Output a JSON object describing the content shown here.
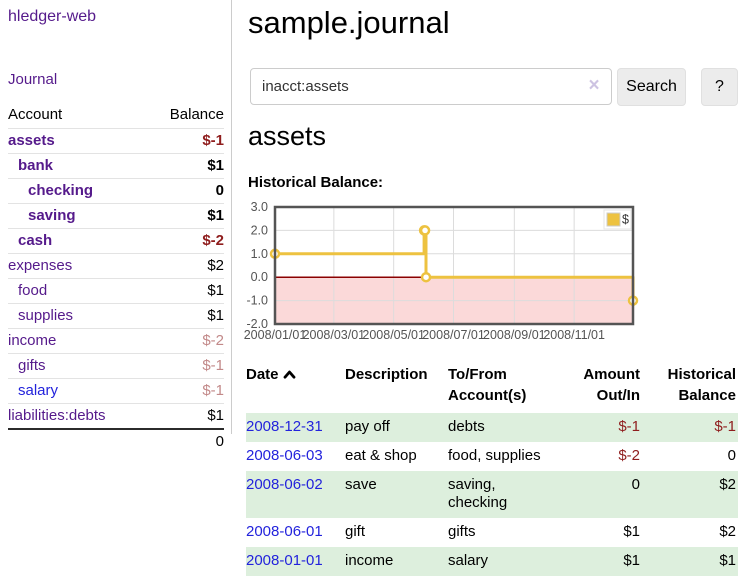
{
  "app": {
    "brand": "hledger-web"
  },
  "sidebar": {
    "journal_link": "Journal",
    "account_header": "Account",
    "balance_header": "Balance",
    "accounts": [
      {
        "name": "assets",
        "balance": "$-1",
        "indent": 0,
        "bold": true,
        "neg": "strong"
      },
      {
        "name": "bank",
        "balance": "$1",
        "indent": 1,
        "bold": true,
        "neg": "none"
      },
      {
        "name": "checking",
        "balance": "0",
        "indent": 2,
        "bold": true,
        "neg": "none"
      },
      {
        "name": "saving",
        "balance": "$1",
        "indent": 2,
        "bold": true,
        "neg": "none"
      },
      {
        "name": "cash",
        "balance": "$-2",
        "indent": 1,
        "bold": true,
        "neg": "strong"
      },
      {
        "name": "expenses",
        "balance": "$2",
        "indent": 0,
        "bold": false,
        "neg": "none"
      },
      {
        "name": "food",
        "balance": "$1",
        "indent": 1,
        "bold": false,
        "neg": "none"
      },
      {
        "name": "supplies",
        "balance": "$1",
        "indent": 1,
        "bold": false,
        "neg": "none"
      },
      {
        "name": "income",
        "balance": "$-2",
        "indent": 0,
        "bold": false,
        "neg": "soft"
      },
      {
        "name": "gifts",
        "balance": "$-1",
        "indent": 1,
        "bold": false,
        "neg": "soft"
      },
      {
        "name": "salary",
        "balance": "$-1",
        "indent": 1,
        "bold": false,
        "neg": "soft",
        "blue": true
      },
      {
        "name": "liabilities:debts",
        "balance": "$1",
        "indent": 0,
        "bold": false,
        "neg": "none"
      }
    ],
    "total": "0"
  },
  "header": {
    "title": "sample.journal"
  },
  "search": {
    "value": "inacct:assets",
    "clear_icon": "×",
    "button_label": "Search",
    "help_label": "?"
  },
  "account_page": {
    "title": "assets",
    "chart_label": "Historical Balance:"
  },
  "chart_data": {
    "type": "line",
    "style": "step",
    "series": [
      {
        "name": "$",
        "points": [
          [
            "2008-01-01",
            1
          ],
          [
            "2008-06-01",
            2
          ],
          [
            "2008-06-02",
            2
          ],
          [
            "2008-06-03",
            0
          ],
          [
            "2008-12-31",
            -1
          ]
        ]
      }
    ],
    "title": "Historical Balance:",
    "xrange": [
      "2008-01-01",
      "2008-12-31"
    ],
    "ylim": [
      -2.0,
      3.0
    ],
    "yticks": [
      3.0,
      2.0,
      1.0,
      0.0,
      -1.0,
      -2.0
    ],
    "xticks": [
      "2008/01/01",
      "2008/03/01",
      "2008/05/01",
      "2008/07/01",
      "2008/09/01",
      "2008/11/01"
    ],
    "legend": "$",
    "legend_position": "top-right",
    "grid": true,
    "negative_region_shaded": true
  },
  "register": {
    "headers": {
      "date": "Date",
      "description": "Description",
      "to_from": "To/From\nAccount(s)",
      "amount": "Amount\nOut/In",
      "balance": "Historical\nBalance"
    },
    "rows": [
      {
        "date": "2008-12-31",
        "description": "pay off",
        "to_from": "debts",
        "amount": "$-1",
        "amount_negative": true,
        "balance": "$-1",
        "balance_negative": true
      },
      {
        "date": "2008-06-03",
        "description": "eat & shop",
        "to_from": "food, supplies",
        "amount": "$-2",
        "amount_negative": true,
        "balance": "0",
        "balance_negative": false
      },
      {
        "date": "2008-06-02",
        "description": "save",
        "to_from": "saving,\nchecking",
        "amount": "0",
        "amount_negative": false,
        "balance": "$2",
        "balance_negative": false
      },
      {
        "date": "2008-06-01",
        "description": "gift",
        "to_from": "gifts",
        "amount": "$1",
        "amount_negative": false,
        "balance": "$2",
        "balance_negative": false
      },
      {
        "date": "2008-01-01",
        "description": "income",
        "to_from": "salary",
        "amount": "$1",
        "amount_negative": false,
        "balance": "$1",
        "balance_negative": false
      }
    ]
  },
  "colors": {
    "link_purple": "#551a8b",
    "link_blue": "#2323dc",
    "negative_strong": "#8f1d1d",
    "negative_soft": "#c28989",
    "row_stripe_green": "#ddefdd",
    "chart_line": "#edc240",
    "chart_negative_fill": "#fbd9d9",
    "chart_zero_line": "#8b0000",
    "chart_grid": "#dcdcdc",
    "chart_border": "#545454"
  }
}
